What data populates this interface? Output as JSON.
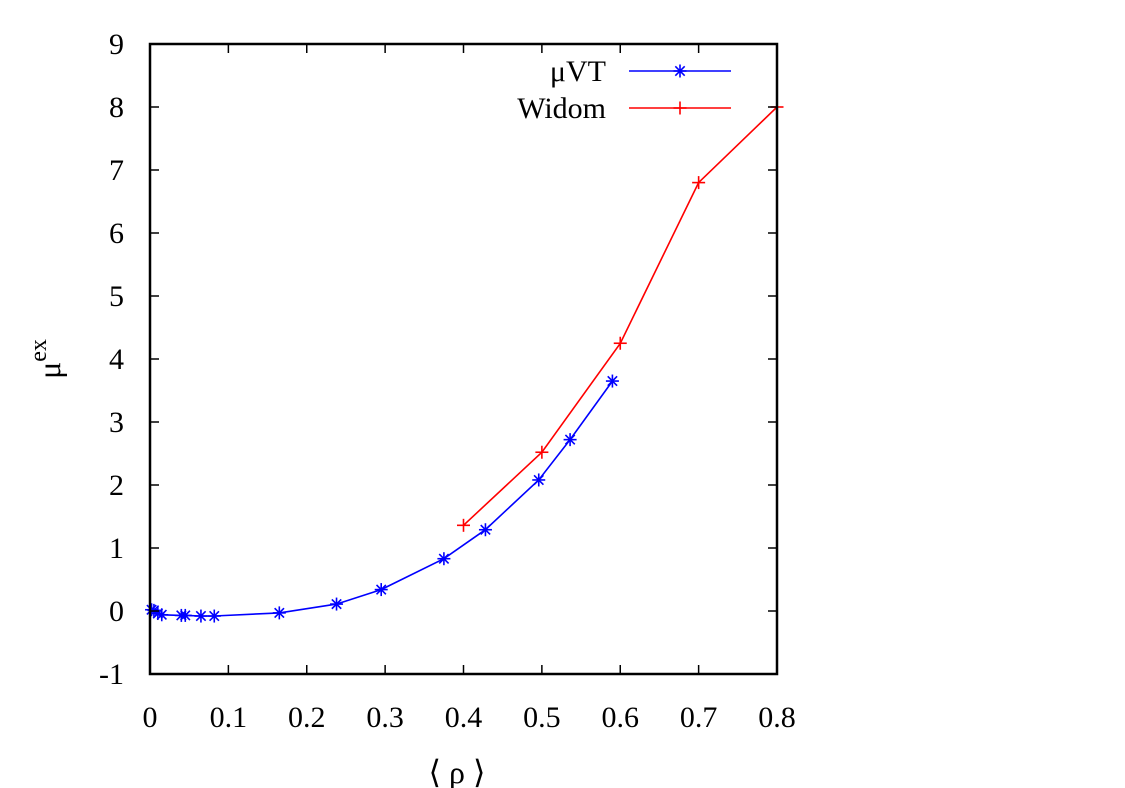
{
  "chart_data": {
    "type": "line",
    "title": "",
    "xlabel": "⟨ ρ ⟩",
    "ylabel": "μ",
    "ylabel_superscript": "ex",
    "xlim": [
      0,
      0.8
    ],
    "ylim": [
      -1,
      9
    ],
    "xticks": [
      "0",
      "0.1",
      "0.2",
      "0.3",
      "0.4",
      "0.5",
      "0.6",
      "0.7",
      "0.8"
    ],
    "yticks": [
      "-1",
      "0",
      "1",
      "2",
      "3",
      "4",
      "5",
      "6",
      "7",
      "8",
      "9"
    ],
    "grid": false,
    "legend_position": "top-right",
    "series": [
      {
        "name": "μVT",
        "color": "#0000ff",
        "marker": "asterisk",
        "x": [
          0.002,
          0.005,
          0.01,
          0.015,
          0.04,
          0.045,
          0.065,
          0.082,
          0.165,
          0.238,
          0.295,
          0.375,
          0.428,
          0.496,
          0.536,
          0.59
        ],
        "y": [
          0.02,
          0.01,
          -0.04,
          -0.06,
          -0.07,
          -0.07,
          -0.08,
          -0.08,
          -0.03,
          0.11,
          0.34,
          0.83,
          1.29,
          2.08,
          2.72,
          3.65
        ]
      },
      {
        "name": "Widom",
        "color": "#ff0000",
        "marker": "plus",
        "x": [
          0.4,
          0.5,
          0.6,
          0.7,
          0.8
        ],
        "y": [
          1.36,
          2.52,
          4.25,
          6.8,
          8.0
        ]
      }
    ]
  }
}
